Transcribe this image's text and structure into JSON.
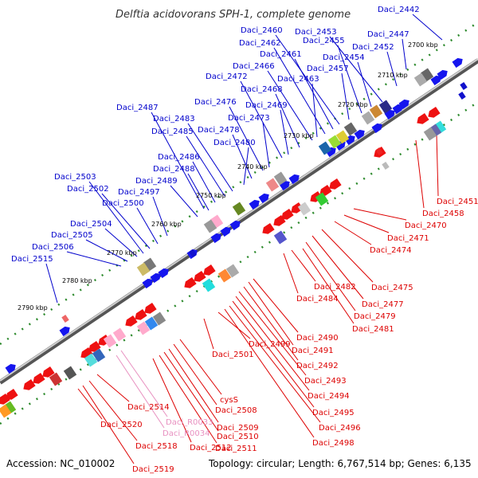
{
  "title": "Delftia acidovorans SPH-1, complete genome",
  "footer": {
    "accession": "Accession: NC_010002",
    "topology": "Topology: circular; Length: 6,767,514 bp; Genes: 6,135"
  },
  "colors": {
    "forward_label": "#0000cc",
    "reverse_label": "#dd0000",
    "rna_label": "#e890c0",
    "backbone": "#888888",
    "tick": "#2d8a2d"
  },
  "scale_ticks": [
    "2700 kbp",
    "2710 kbp",
    "2720 kbp",
    "2730 kbp",
    "2740 kbp",
    "2750 kbp",
    "2760 kbp",
    "2770 kbp",
    "2780 kbp",
    "2790 kbp"
  ],
  "forward_genes": [
    "Daci_2442",
    "Daci_2447",
    "Daci_2452",
    "Daci_2453",
    "Daci_2454",
    "Daci_2455",
    "Daci_2457",
    "Daci_2460",
    "Daci_2461",
    "Daci_2462",
    "Daci_2463",
    "Daci_2466",
    "Daci_2468",
    "Daci_2469",
    "Daci_2472",
    "Daci_2473",
    "Daci_2476",
    "Daci_2478",
    "Daci_2480",
    "Daci_2483",
    "Daci_2485",
    "Daci_2486",
    "Daci_2487",
    "Daci_2488",
    "Daci_2489",
    "Daci_2497",
    "Daci_2500",
    "Daci_2502",
    "Daci_2503",
    "Daci_2504",
    "Daci_2505",
    "Daci_2506",
    "Daci_2515"
  ],
  "reverse_genes": [
    "Daci_2451",
    "Daci_2458",
    "Daci_2470",
    "Daci_2471",
    "Daci_2474",
    "Daci_2475",
    "Daci_2477",
    "Daci_2479",
    "Daci_2481",
    "Daci_2482",
    "Daci_2484",
    "Daci_2490",
    "Daci_2491",
    "Daci_2492",
    "Daci_2493",
    "Daci_2494",
    "Daci_2495",
    "Daci_2496",
    "Daci_2498",
    "Daci_2499",
    "Daci_2501",
    "cysS",
    "Daci_2508",
    "Daci_2509",
    "Daci_2510",
    "Daci_2511",
    "Daci_2512",
    "Daci_2514",
    "Daci_2518",
    "Daci_2519",
    "Daci_2520"
  ],
  "rna_genes": [
    "Daci_R0033",
    "Daci_R0034"
  ]
}
